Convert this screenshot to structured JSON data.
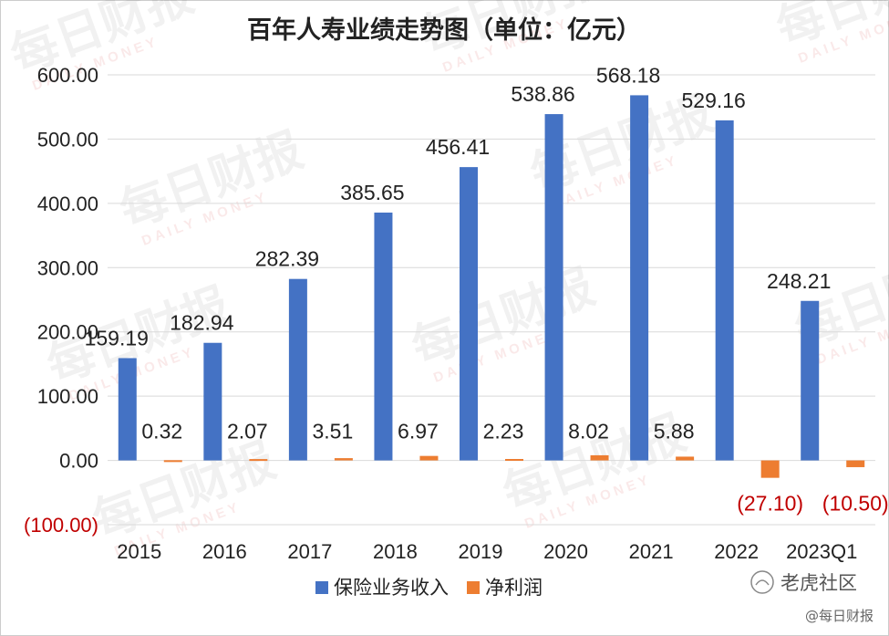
{
  "chart_data": {
    "type": "bar",
    "title": "百年人寿业绩走势图（单位：亿元）",
    "categories": [
      "2015",
      "2016",
      "2017",
      "2018",
      "2019",
      "2020",
      "2021",
      "2022",
      "2023Q1"
    ],
    "series": [
      {
        "name": "保险业务收入",
        "color": "#4472c4",
        "values": [
          159.19,
          182.94,
          282.39,
          385.65,
          456.41,
          538.86,
          568.18,
          529.16,
          248.21
        ],
        "labels": [
          "159.19",
          "182.94",
          "282.39",
          "385.65",
          "456.41",
          "538.86",
          "568.18",
          "529.16",
          "248.21"
        ]
      },
      {
        "name": "净利润",
        "color": "#ed7d31",
        "values": [
          0.32,
          2.07,
          3.51,
          6.97,
          2.23,
          8.02,
          5.88,
          -27.1,
          -10.5
        ],
        "labels": [
          "0.32",
          "2.07",
          "3.51",
          "6.97",
          "2.23",
          "8.02",
          "5.88",
          "(27.10)",
          "(10.50)"
        ]
      }
    ],
    "ylim": [
      -100,
      600
    ],
    "yticks": [
      {
        "value": 600,
        "label": "600.00"
      },
      {
        "value": 500,
        "label": "500.00"
      },
      {
        "value": 400,
        "label": "400.00"
      },
      {
        "value": 300,
        "label": "300.00"
      },
      {
        "value": 200,
        "label": "200.00"
      },
      {
        "value": 100,
        "label": "100.00"
      },
      {
        "value": 0,
        "label": "0.00"
      },
      {
        "value": -100,
        "label": "(100.00)"
      }
    ],
    "negative_label_color": "#c00000",
    "grid": true,
    "legend_position": "bottom"
  },
  "watermark": {
    "text": "每日财报",
    "sub": "DAILY MONEY"
  },
  "branding": {
    "community": "老虎社区",
    "credit": "@每日财报"
  }
}
